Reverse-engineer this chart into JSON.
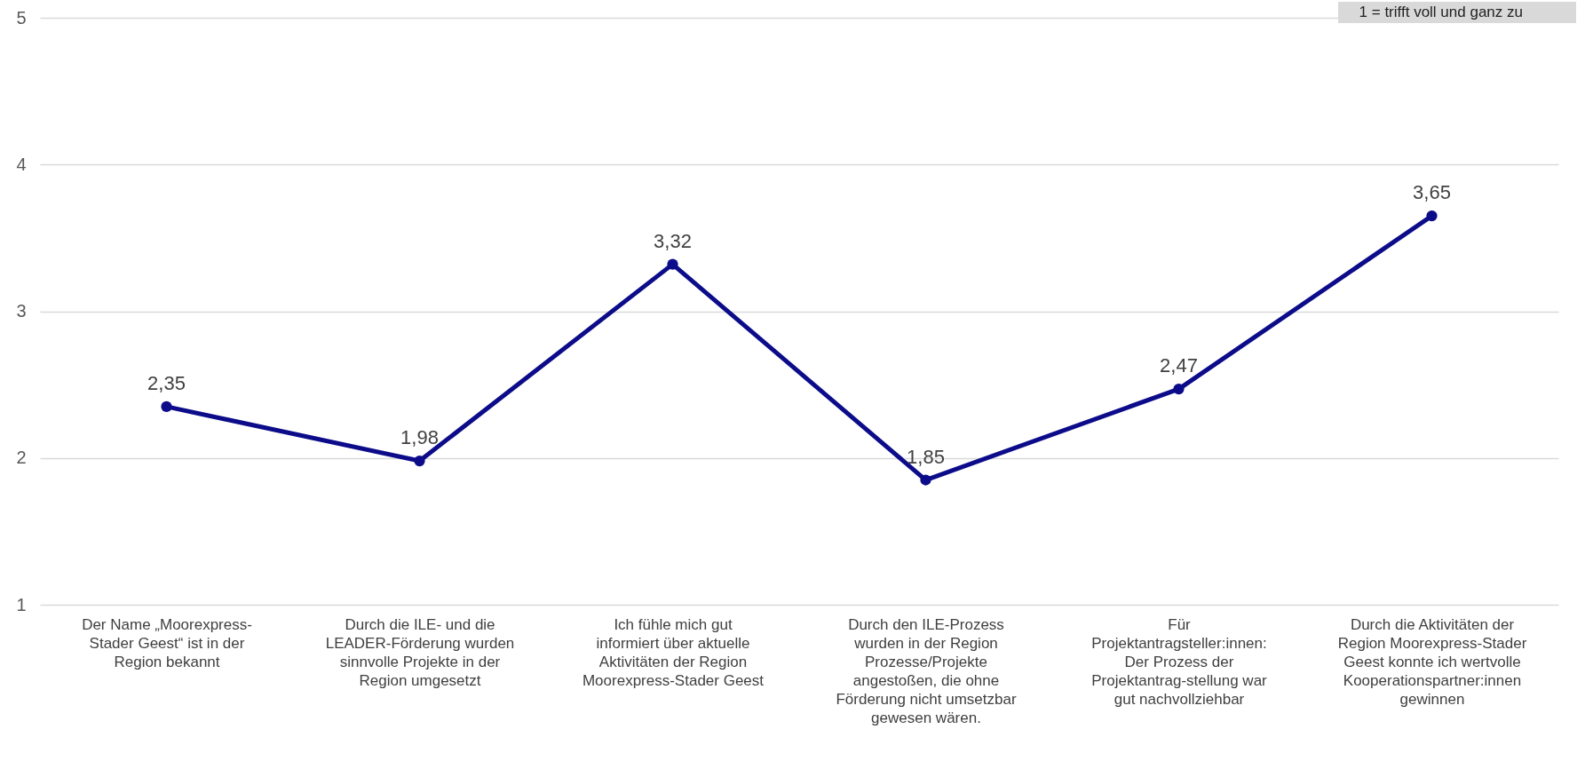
{
  "chart_data": {
    "type": "line",
    "categories": [
      "Der Name „Moorexpress-Stader Geest“ ist in der Region bekannt",
      "Durch die ILE- und die LEADER-Förderung wurden sinnvolle Projekte in der Region umgesetzt",
      "Ich fühle mich gut informiert über aktuelle Aktivitäten der Region Moorexpress-Stader Geest",
      "Durch den ILE-Prozess wurden in der Region Prozesse/Projekte angestoßen, die ohne Förderung nicht umsetzbar gewesen wären.",
      "Für Projektantragsteller:innen: Der Prozess der Projektantrag-stellung war gut nachvollziehbar",
      "Durch die Aktivitäten der Region Moorexpress-Stader Geest konnte ich wertvolle Kooperationspartner:innen gewinnen"
    ],
    "series": [
      {
        "color": "#0c0c8a",
        "values": [
          2.35,
          1.98,
          3.32,
          1.85,
          2.47,
          3.65
        ]
      }
    ],
    "value_labels": [
      "2,35",
      "1,98",
      "3,32",
      "1,85",
      "2,47",
      "3,65"
    ],
    "ylim": [
      1,
      5
    ],
    "yticks": [
      1,
      2,
      3,
      4,
      5
    ],
    "grid": "y",
    "marker": "circle",
    "annotations": [
      "1 = trifft voll und ganz zu"
    ]
  }
}
